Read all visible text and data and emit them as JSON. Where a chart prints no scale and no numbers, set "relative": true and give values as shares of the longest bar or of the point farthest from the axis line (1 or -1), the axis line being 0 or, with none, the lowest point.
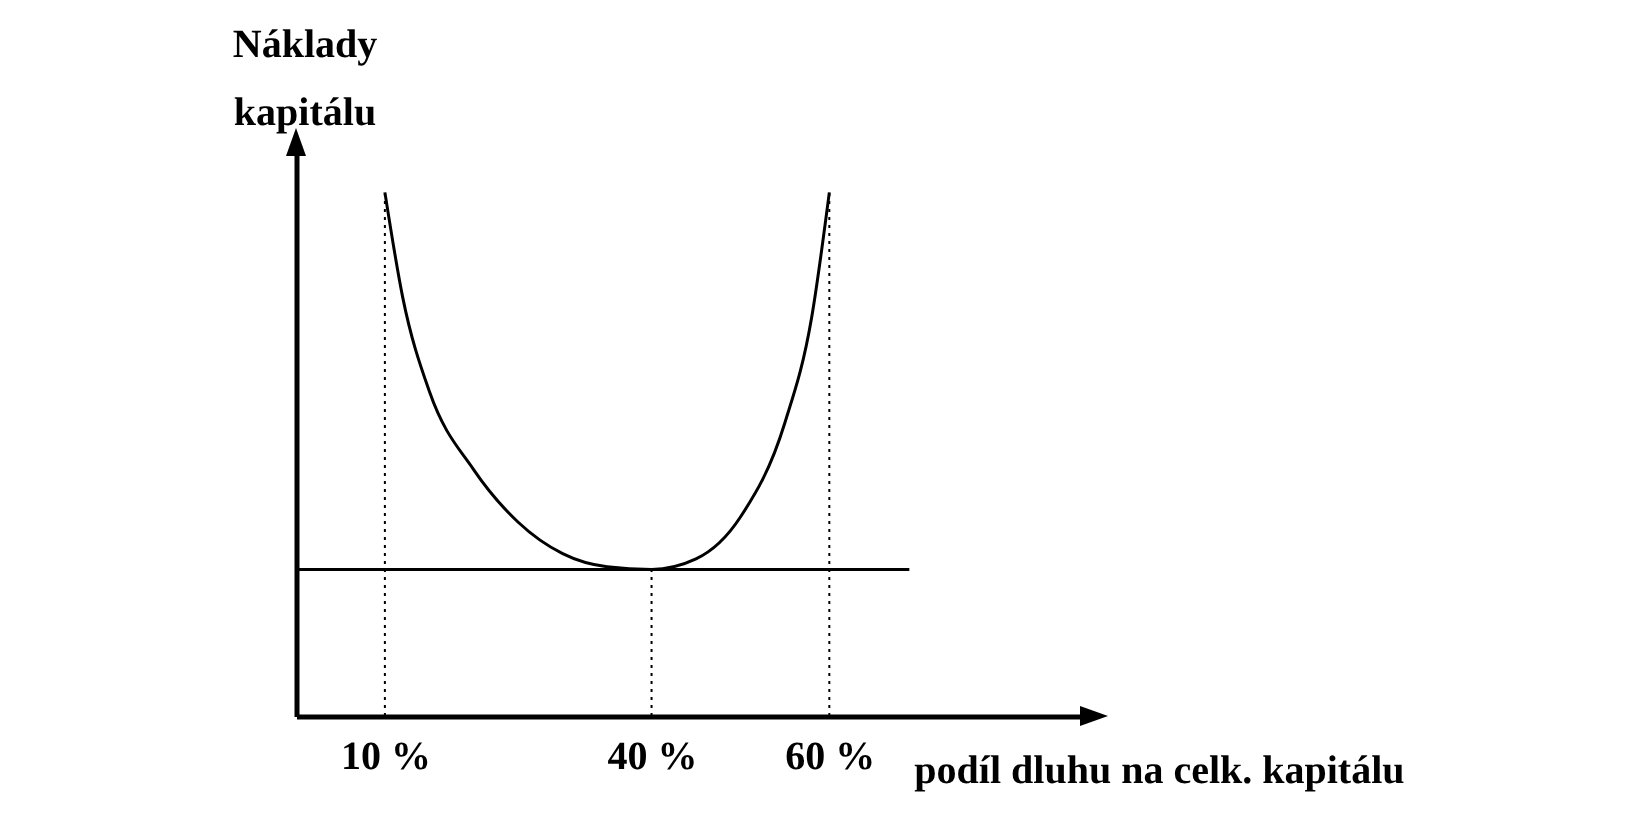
{
  "chart_data": {
    "type": "line",
    "relative": true,
    "xlabel": "podíl dluhu na celk. kapitálu",
    "ylabel": "Náklady kapitálu",
    "xlim": [
      0,
      90
    ],
    "xticks": [
      {
        "value": 10,
        "label": "10 %"
      },
      {
        "value": 40,
        "label": "40 %"
      },
      {
        "value": 60,
        "label": "60 %"
      }
    ],
    "series": [
      {
        "color": "#000000",
        "x": [
          10,
          12,
          15,
          20,
          25,
          30,
          35,
          40,
          45,
          50,
          55,
          58,
          60
        ],
        "values": [
          1.0,
          0.8,
          0.62,
          0.47,
          0.37,
          0.31,
          0.285,
          0.28,
          0.3,
          0.38,
          0.56,
          0.76,
          1.0
        ]
      },
      {
        "color": "#000000",
        "x": [
          0,
          69
        ],
        "values": [
          0.28,
          0.28
        ]
      }
    ],
    "ref_lines": [
      {
        "axis": "x",
        "value": 10,
        "color": "#000000",
        "line_style": "dotted"
      },
      {
        "axis": "x",
        "value": 40,
        "color": "#000000",
        "line_style": "dotted"
      },
      {
        "axis": "x",
        "value": 60,
        "color": "#000000",
        "line_style": "dotted"
      }
    ],
    "grid": false,
    "marker": "none",
    "line_style": "solid",
    "tick_labels": "x"
  }
}
